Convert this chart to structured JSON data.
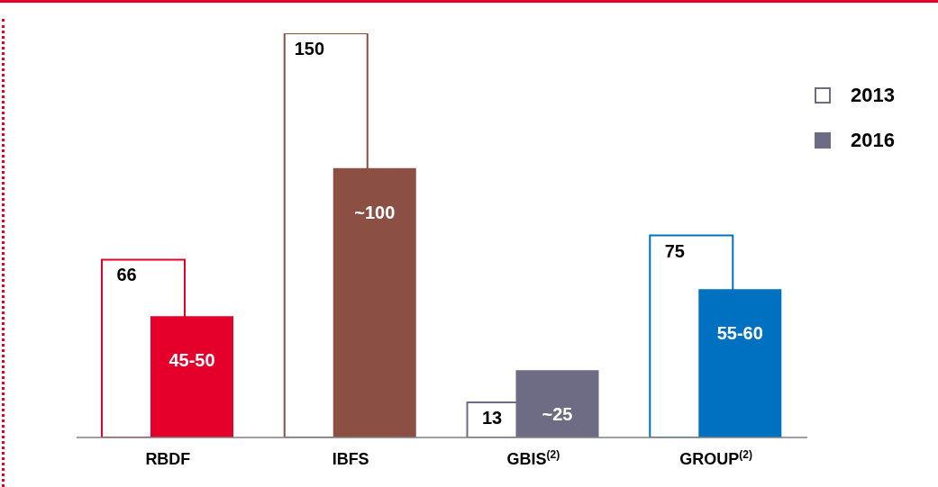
{
  "chart_data": {
    "type": "bar",
    "categories": [
      "RBDF",
      "IBFS",
      "GBIS$^{(2)}$",
      "GROUP$^{(2)}$"
    ],
    "series": [
      {
        "name": "2013",
        "color": "#6e6c84",
        "colors": [
          "#e4002b",
          "#8b4f44",
          "#6e6c84",
          "#0070c0"
        ],
        "values": [
          66,
          150,
          13,
          75
        ],
        "value_labels": [
          "66",
          "150",
          "13",
          "75"
        ]
      },
      {
        "name": "2016",
        "color": "#6e6c84",
        "colors": [
          "#e4002b",
          "#8b4f44",
          "#6e6c84",
          "#0070c0"
        ],
        "values": [
          45,
          100,
          25,
          55
        ],
        "value_labels": [
          "45-50",
          "~100",
          "~25",
          "55-60"
        ]
      }
    ],
    "legend": "top right",
    "grid": false
  }
}
